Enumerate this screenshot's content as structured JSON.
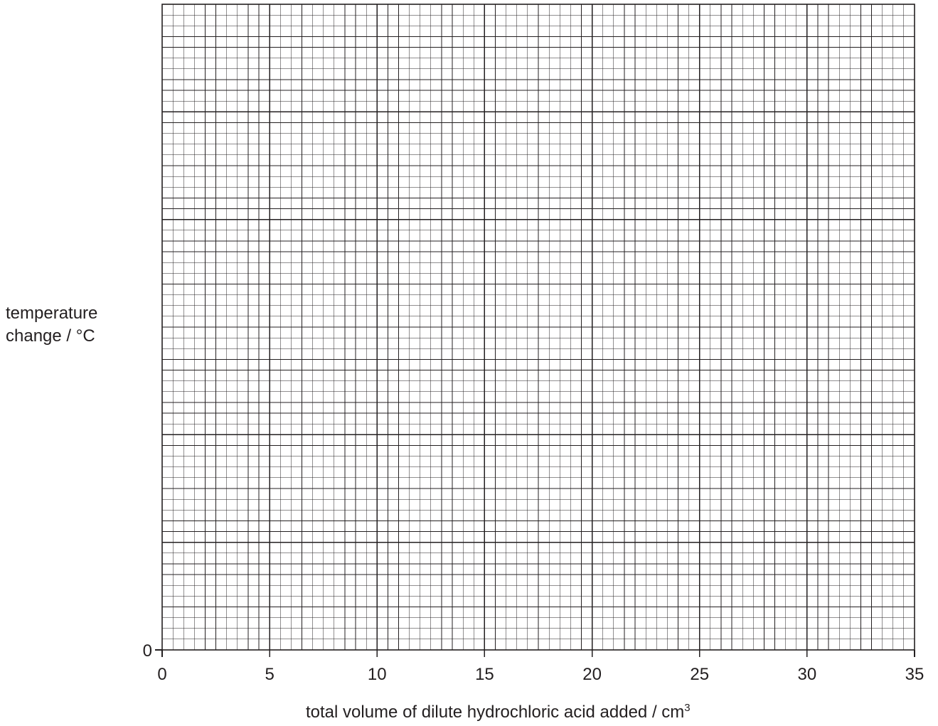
{
  "chart_data": {
    "type": "line",
    "title": "",
    "xlabel": {
      "main": "total volume of dilute hydrochloric acid added / cm",
      "superscript": "3"
    },
    "ylabel": {
      "line1": "temperature",
      "line2": "change / °C"
    },
    "xlim": [
      0,
      35
    ],
    "x_ticks": [
      "0",
      "5",
      "10",
      "15",
      "20",
      "25",
      "30",
      "35"
    ],
    "y_tick_labels": [
      "0"
    ],
    "series": [],
    "grid": true,
    "grid_minor_per_major": 10,
    "y_major_divisions": 6,
    "colors": {
      "ink": "#231f20",
      "minor_grid": "#231f20",
      "major_grid": "#231f20"
    }
  }
}
